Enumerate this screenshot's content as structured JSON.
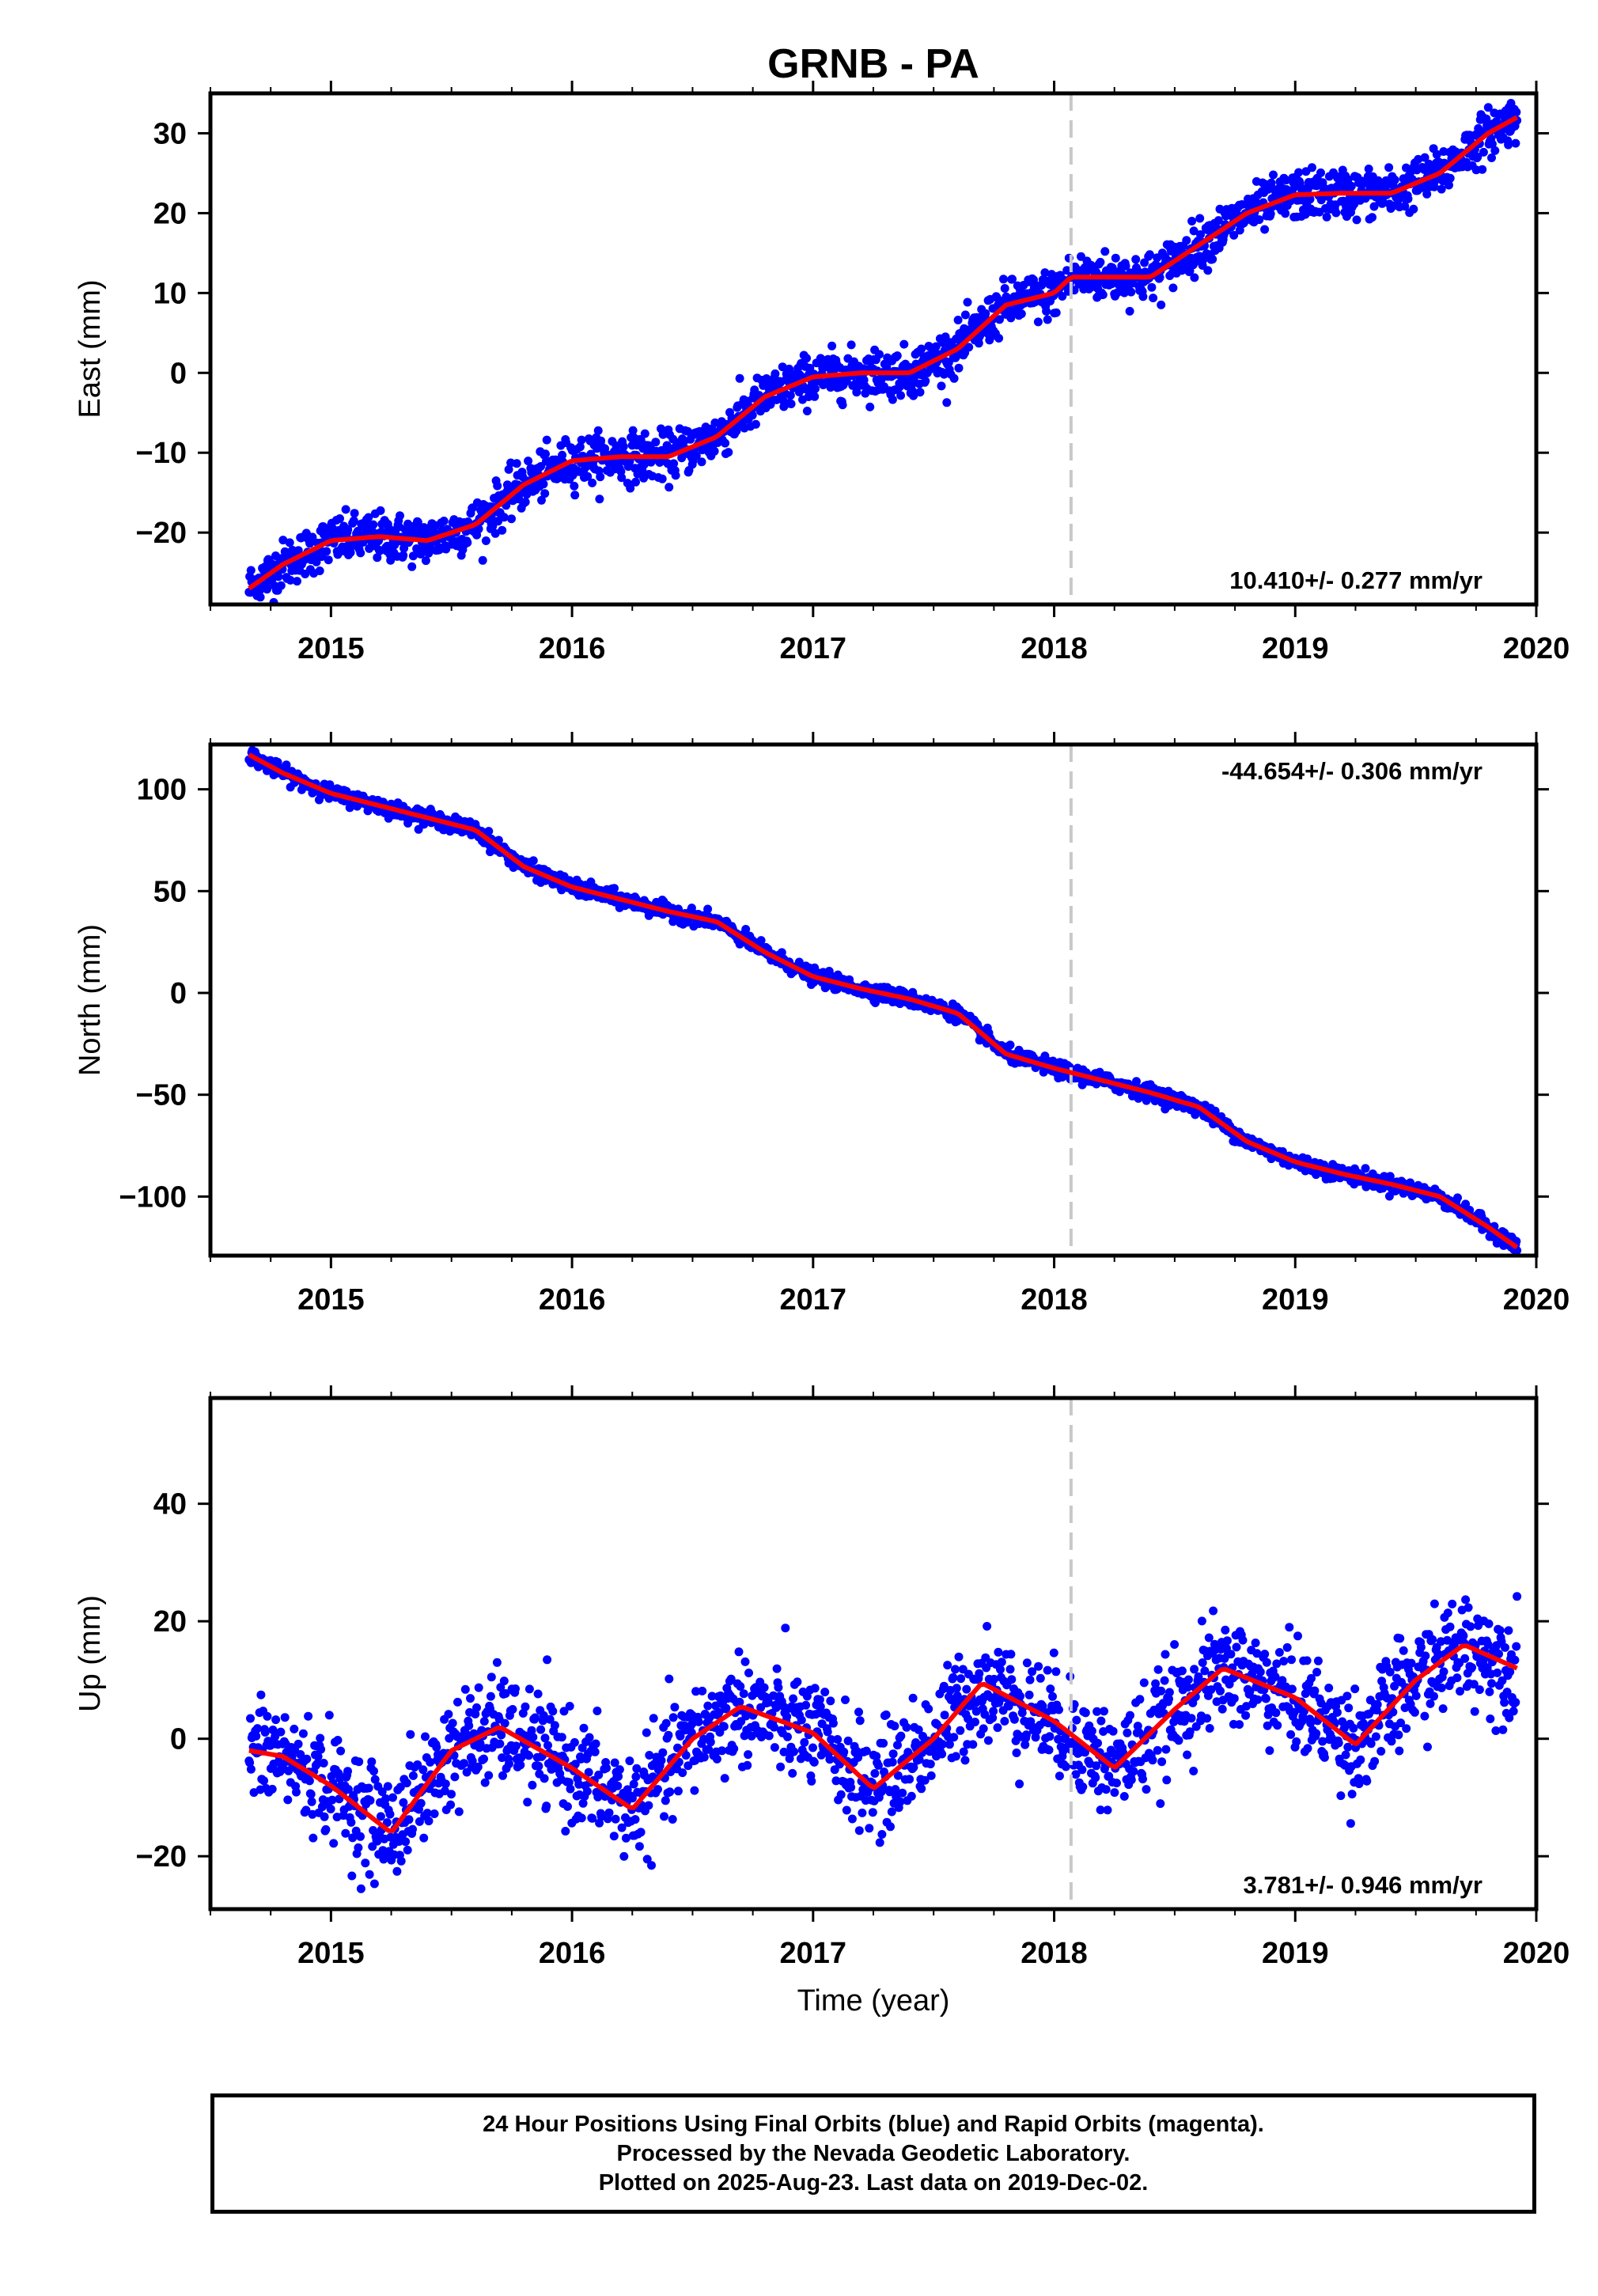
{
  "title": "GRNB - PA",
  "colors": {
    "data": "#0000ff",
    "model": "#ff0000",
    "step": "#c8c8c8",
    "frame": "#000000"
  },
  "chart_data": [
    {
      "type": "scatter",
      "ylabel": "East (mm)",
      "xlabel": "",
      "xlim": [
        2014.5,
        2020.0
      ],
      "ylim": [
        -29,
        35
      ],
      "xticks": [
        2015,
        2016,
        2017,
        2018,
        2019,
        2020
      ],
      "yticks": [
        -20,
        -10,
        0,
        10,
        20,
        30
      ],
      "step_epoch": 2018.07,
      "rate_label": "10.410+/- 0.277 mm/yr",
      "rate_position": "bottom-right",
      "model_series": {
        "x": [
          2014.66,
          2014.8,
          2015.0,
          2015.2,
          2015.4,
          2015.6,
          2015.8,
          2016.0,
          2016.2,
          2016.4,
          2016.6,
          2016.8,
          2017.0,
          2017.2,
          2017.4,
          2017.6,
          2017.8,
          2018.0,
          2018.07,
          2018.2,
          2018.4,
          2018.6,
          2018.8,
          2019.0,
          2019.2,
          2019.4,
          2019.6,
          2019.8,
          2019.92
        ],
        "y": [
          -27,
          -24,
          -21,
          -20.5,
          -21,
          -19,
          -14,
          -11,
          -10.5,
          -10.5,
          -8,
          -3,
          -0.5,
          0,
          0,
          3,
          8.5,
          10,
          12,
          12,
          12,
          16,
          20,
          22.3,
          22.5,
          22.5,
          25,
          30,
          32
        ]
      },
      "scatter_points": 1900,
      "scatter_spread_mm": 1.5
    },
    {
      "type": "scatter",
      "ylabel": "North (mm)",
      "xlabel": "",
      "xlim": [
        2014.5,
        2020.0
      ],
      "ylim": [
        -129,
        122
      ],
      "xticks": [
        2015,
        2016,
        2017,
        2018,
        2019,
        2020
      ],
      "yticks": [
        -100,
        -50,
        0,
        50,
        100
      ],
      "step_epoch": 2018.07,
      "rate_label": "-44.654+/- 0.306 mm/yr",
      "rate_position": "top-right",
      "model_series": {
        "x": [
          2014.66,
          2014.8,
          2015.0,
          2015.2,
          2015.4,
          2015.6,
          2015.8,
          2016.0,
          2016.2,
          2016.4,
          2016.6,
          2016.8,
          2017.0,
          2017.2,
          2017.4,
          2017.6,
          2017.8,
          2018.0,
          2018.2,
          2018.4,
          2018.6,
          2018.8,
          2019.0,
          2019.2,
          2019.4,
          2019.6,
          2019.8,
          2019.92
        ],
        "y": [
          117,
          108,
          98,
          92,
          86,
          80,
          62,
          52,
          46,
          40,
          35,
          20,
          8,
          2,
          -3,
          -10,
          -30,
          -37,
          -43,
          -49,
          -56,
          -73,
          -83,
          -89,
          -94,
          -100,
          -115,
          -125
        ]
      },
      "scatter_points": 1900,
      "scatter_spread_mm": 1.8
    },
    {
      "type": "scatter",
      "ylabel": "Up (mm)",
      "xlabel": "Time (year)",
      "xlim": [
        2014.5,
        2020.0
      ],
      "ylim": [
        -29,
        58
      ],
      "xticks": [
        2015,
        2016,
        2017,
        2018,
        2019,
        2020
      ],
      "yticks": [
        -20,
        0,
        20,
        40
      ],
      "step_epoch": 2018.07,
      "rate_label": "3.781+/- 0.946 mm/yr",
      "rate_position": "bottom-right",
      "model_series": {
        "x": [
          2014.66,
          2014.8,
          2015.0,
          2015.25,
          2015.5,
          2015.7,
          2016.0,
          2016.25,
          2016.5,
          2016.7,
          2017.0,
          2017.25,
          2017.5,
          2017.7,
          2018.0,
          2018.25,
          2018.5,
          2018.7,
          2019.0,
          2019.25,
          2019.5,
          2019.7,
          2019.92
        ],
        "y": [
          -2,
          -3,
          -8,
          -16,
          -2,
          2,
          -5,
          -12,
          0,
          5.5,
          1,
          -8.5,
          0,
          9.5,
          3,
          -5,
          5,
          12,
          7,
          -1,
          10,
          16,
          12
        ]
      },
      "scatter_points": 1800,
      "scatter_spread_mm": 4.5
    }
  ],
  "footer": {
    "line1": "24 Hour Positions Using Final Orbits (blue) and Rapid Orbits (magenta).",
    "line2": "Processed by the Nevada Geodetic Laboratory.",
    "line3": "Plotted on 2025-Aug-23. Last data on 2019-Dec-02."
  }
}
